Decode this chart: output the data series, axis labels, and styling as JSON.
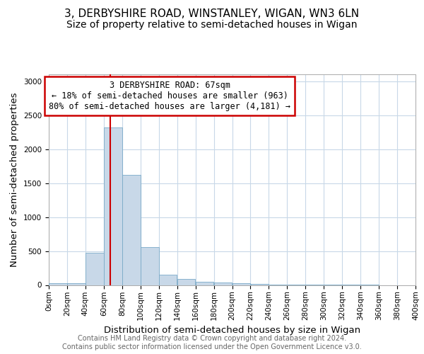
{
  "title_line1": "3, DERBYSHIRE ROAD, WINSTANLEY, WIGAN, WN3 6LN",
  "title_line2": "Size of property relative to semi-detached houses in Wigan",
  "xlabel": "Distribution of semi-detached houses by size in Wigan",
  "ylabel": "Number of semi-detached properties",
  "bin_edges": [
    0,
    20,
    40,
    60,
    80,
    100,
    120,
    140,
    160,
    180,
    200,
    220,
    240,
    260,
    280,
    300,
    320,
    340,
    360,
    380,
    400
  ],
  "bar_heights": [
    25,
    28,
    470,
    2320,
    1620,
    560,
    155,
    85,
    50,
    40,
    28,
    12,
    4,
    2,
    1,
    1,
    1,
    1,
    0,
    0
  ],
  "bar_color": "#c8d8e8",
  "bar_edgecolor": "#7aaac8",
  "property_size": 67,
  "red_line_color": "#cc0000",
  "annotation_text": "3 DERBYSHIRE ROAD: 67sqm\n← 18% of semi-detached houses are smaller (963)\n80% of semi-detached houses are larger (4,181) →",
  "annotation_box_color": "#ffffff",
  "annotation_box_edgecolor": "#cc0000",
  "ylim": [
    0,
    3100
  ],
  "xlim": [
    0,
    400
  ],
  "yticks": [
    0,
    500,
    1000,
    1500,
    2000,
    2500,
    3000
  ],
  "xtick_step": 20,
  "footnote": "Contains HM Land Registry data © Crown copyright and database right 2024.\nContains public sector information licensed under the Open Government Licence v3.0.",
  "background_color": "#ffffff",
  "grid_color": "#c8d8e8",
  "title_fontsize": 11,
  "subtitle_fontsize": 10,
  "axis_label_fontsize": 9.5,
  "tick_fontsize": 7.5,
  "annotation_fontsize": 8.5,
  "footnote_fontsize": 7.0
}
